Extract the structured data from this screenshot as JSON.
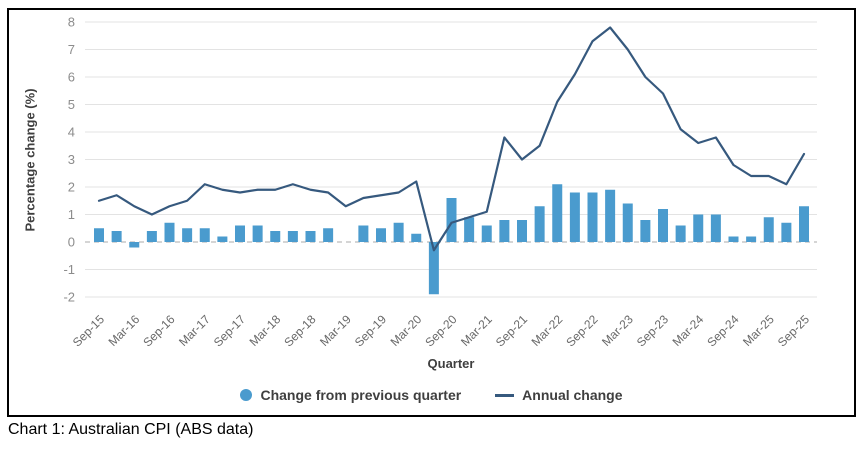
{
  "figure": {
    "caption": "Chart 1: Australian CPI (ABS data)"
  },
  "chart_data": {
    "type": "bar",
    "title": "",
    "xlabel": "Quarter",
    "ylabel": "Percentage change (%)",
    "ylim": [
      -2,
      8
    ],
    "yticks": [
      8,
      7,
      6,
      5,
      4,
      3,
      2,
      1,
      0,
      -1,
      -2
    ],
    "grid": true,
    "legend_position": "bottom",
    "categories": [
      "Sep-15",
      "Dec-15",
      "Mar-16",
      "Jun-16",
      "Sep-16",
      "Dec-16",
      "Mar-17",
      "Jun-17",
      "Sep-17",
      "Dec-17",
      "Mar-18",
      "Jun-18",
      "Sep-18",
      "Dec-18",
      "Mar-19",
      "Jun-19",
      "Sep-19",
      "Dec-19",
      "Mar-20",
      "Jun-20",
      "Sep-20",
      "Dec-20",
      "Mar-21",
      "Jun-21",
      "Sep-21",
      "Dec-21",
      "Mar-22",
      "Jun-22",
      "Sep-22",
      "Dec-22",
      "Mar-23",
      "Jun-23",
      "Sep-23",
      "Dec-23",
      "Mar-24",
      "Jun-24",
      "Sep-24",
      "Dec-24",
      "Mar-25",
      "Jun-25",
      "Sep-25"
    ],
    "xtick_labels": [
      "Sep-15",
      "Mar-16",
      "Sep-16",
      "Mar-17",
      "Sep-17",
      "Mar-18",
      "Sep-18",
      "Mar-19",
      "Sep-19",
      "Mar-20",
      "Sep-20",
      "Mar-21",
      "Sep-21",
      "Mar-22",
      "Sep-22",
      "Mar-23",
      "Sep-23",
      "Mar-24",
      "Sep-24",
      "Mar-25",
      "Sep-25"
    ],
    "series": [
      {
        "name": "Change from previous quarter",
        "type": "bar",
        "color": "#4A9BCE",
        "values": [
          0.5,
          0.4,
          -0.2,
          0.4,
          0.7,
          0.5,
          0.5,
          0.2,
          0.6,
          0.6,
          0.4,
          0.4,
          0.4,
          0.5,
          0.0,
          0.6,
          0.5,
          0.7,
          0.3,
          -1.9,
          1.6,
          0.9,
          0.6,
          0.8,
          0.8,
          1.3,
          2.1,
          1.8,
          1.8,
          1.9,
          1.4,
          0.8,
          1.2,
          0.6,
          1.0,
          1.0,
          0.2,
          0.2,
          0.9,
          0.7,
          1.3
        ]
      },
      {
        "name": "Annual change",
        "type": "line",
        "color": "#36597E",
        "values": [
          1.5,
          1.7,
          1.3,
          1.0,
          1.3,
          1.5,
          2.1,
          1.9,
          1.8,
          1.9,
          1.9,
          2.1,
          1.9,
          1.8,
          1.3,
          1.6,
          1.7,
          1.8,
          2.2,
          -0.3,
          0.7,
          0.9,
          1.1,
          3.8,
          3.0,
          3.5,
          5.1,
          6.1,
          7.3,
          7.8,
          7.0,
          6.0,
          5.4,
          4.1,
          3.6,
          3.8,
          2.8,
          2.4,
          2.4,
          2.1,
          3.2
        ]
      }
    ],
    "colors": {
      "grid": "#E3E3E3",
      "zero_line": "#ABABAB",
      "border": "#000000"
    }
  }
}
